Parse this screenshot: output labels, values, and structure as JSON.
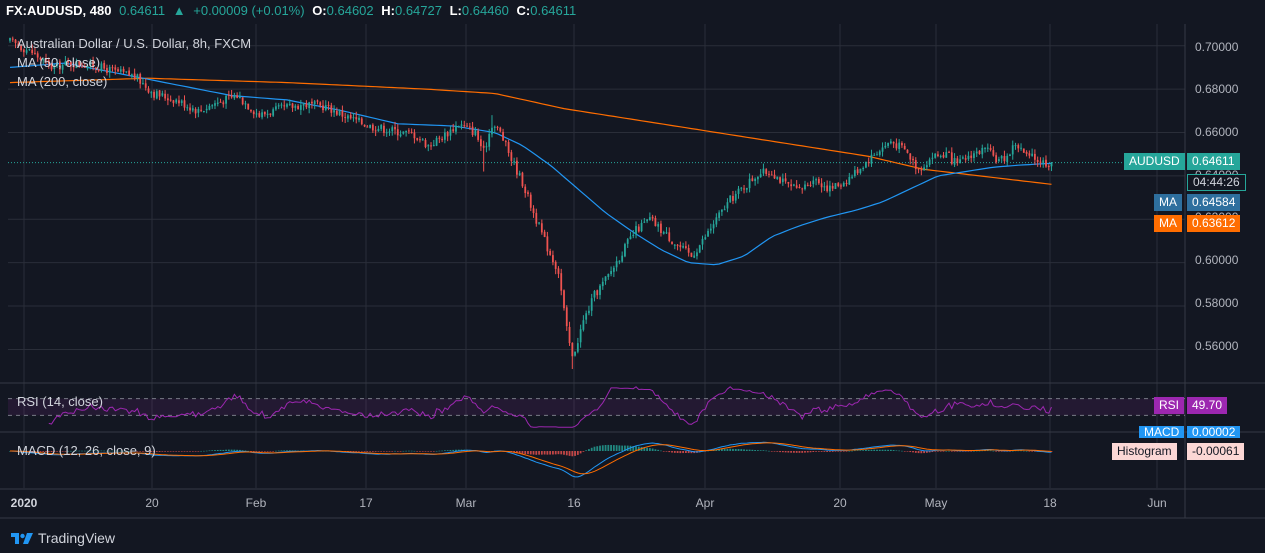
{
  "topbar": {
    "symbol": "FX:AUDUSD, 480",
    "last": "0.64611",
    "change": "+0.00009 (+0.01%)",
    "o_label": "O:",
    "o": "0.64602",
    "h_label": "H:",
    "h": "0.64727",
    "l_label": "L:",
    "l": "0.64460",
    "c_label": "C:",
    "c": "0.64611"
  },
  "legend": {
    "title": "Australian Dollar / U.S. Dollar, 8h, FXCM",
    "ma50": "MA (50, close)",
    "ma200": "MA (200, close)",
    "rsi": "RSI (14, close)",
    "macd": "MACD (12, 26, close, 9)"
  },
  "price_axis": [
    "0.70000",
    "0.68000",
    "0.66000",
    "0.64000",
    "0.62000",
    "0.60000",
    "0.58000",
    "0.56000"
  ],
  "time_axis": [
    "2020",
    "20",
    "Feb",
    "17",
    "Mar",
    "16",
    "Apr",
    "20",
    "May",
    "18",
    "Jun"
  ],
  "price_labels": {
    "symbol_tag": "AUDUSD",
    "price": "0.64611",
    "countdown": "04:44:26",
    "ma_tag": "MA",
    "ma50_value": "0.64584",
    "ma200_value": "0.63612",
    "rsi_tag": "RSI",
    "rsi_value": "49.70",
    "macd_tag": "MACD",
    "macd_value": "0.00002",
    "hist_tag": "Histogram",
    "hist_value": "-0.00061"
  },
  "colors": {
    "up": "#26a69a",
    "down": "#ef5350",
    "ma50": "#2196f3",
    "ma200": "#ff6d00",
    "rsi": "#9c27b0",
    "macd": "#2196f3",
    "signal": "#ff6d00"
  },
  "brand": "TradingView",
  "chart_data": {
    "type": "candlestick",
    "title": "Australian Dollar / U.S. Dollar, 8h, FXCM",
    "ylim": [
      0.55,
      0.705
    ],
    "last_price": 0.64611,
    "ma50_last": 0.64584,
    "ma200_last": 0.63612,
    "rsi_last": 49.7,
    "hist_last": -0.00061,
    "price_path": [
      [
        0,
        0.702
      ],
      [
        8,
        0.697
      ],
      [
        15,
        0.69
      ],
      [
        22,
        0.692
      ],
      [
        30,
        0.691
      ],
      [
        38,
        0.688
      ],
      [
        45,
        0.686
      ],
      [
        52,
        0.678
      ],
      [
        60,
        0.675
      ],
      [
        68,
        0.67
      ],
      [
        75,
        0.674
      ],
      [
        82,
        0.677
      ],
      [
        90,
        0.668
      ],
      [
        98,
        0.671
      ],
      [
        106,
        0.673
      ],
      [
        114,
        0.672
      ],
      [
        122,
        0.667
      ],
      [
        130,
        0.663
      ],
      [
        138,
        0.661
      ],
      [
        146,
        0.659
      ],
      [
        151,
        0.654
      ],
      [
        156,
        0.658
      ],
      [
        162,
        0.664
      ],
      [
        168,
        0.66
      ],
      [
        171,
        0.651
      ],
      [
        174,
        0.664
      ],
      [
        177,
        0.66
      ],
      [
        181,
        0.648
      ],
      [
        185,
        0.637
      ],
      [
        189,
        0.623
      ],
      [
        194,
        0.607
      ],
      [
        198,
        0.596
      ],
      [
        201,
        0.569
      ],
      [
        203,
        0.556
      ],
      [
        207,
        0.573
      ],
      [
        211,
        0.585
      ],
      [
        216,
        0.594
      ],
      [
        221,
        0.605
      ],
      [
        226,
        0.615
      ],
      [
        231,
        0.62
      ],
      [
        236,
        0.614
      ],
      [
        241,
        0.608
      ],
      [
        246,
        0.603
      ],
      [
        250,
        0.61
      ],
      [
        255,
        0.62
      ],
      [
        260,
        0.629
      ],
      [
        265,
        0.635
      ],
      [
        270,
        0.641
      ],
      [
        275,
        0.642
      ],
      [
        280,
        0.636
      ],
      [
        285,
        0.633
      ],
      [
        290,
        0.639
      ],
      [
        296,
        0.634
      ],
      [
        302,
        0.638
      ],
      [
        307,
        0.644
      ],
      [
        312,
        0.65
      ],
      [
        318,
        0.656
      ],
      [
        323,
        0.652
      ],
      [
        328,
        0.643
      ],
      [
        333,
        0.649
      ],
      [
        338,
        0.65
      ],
      [
        342,
        0.645
      ],
      [
        347,
        0.65
      ],
      [
        352,
        0.652
      ],
      [
        357,
        0.647
      ],
      [
        360,
        0.649
      ],
      [
        363,
        0.655
      ],
      [
        367,
        0.649
      ],
      [
        370,
        0.648
      ],
      [
        374,
        0.646
      ],
      [
        376,
        0.646
      ]
    ],
    "ma50_path": [
      [
        0,
        0.69
      ],
      [
        20,
        0.692
      ],
      [
        40,
        0.687
      ],
      [
        60,
        0.682
      ],
      [
        80,
        0.677
      ],
      [
        100,
        0.675
      ],
      [
        120,
        0.67
      ],
      [
        140,
        0.664
      ],
      [
        160,
        0.663
      ],
      [
        175,
        0.66
      ],
      [
        185,
        0.654
      ],
      [
        195,
        0.645
      ],
      [
        205,
        0.634
      ],
      [
        215,
        0.623
      ],
      [
        225,
        0.614
      ],
      [
        235,
        0.606
      ],
      [
        245,
        0.6
      ],
      [
        255,
        0.599
      ],
      [
        265,
        0.603
      ],
      [
        275,
        0.612
      ],
      [
        285,
        0.617
      ],
      [
        295,
        0.621
      ],
      [
        305,
        0.624
      ],
      [
        315,
        0.628
      ],
      [
        325,
        0.634
      ],
      [
        335,
        0.64
      ],
      [
        345,
        0.642
      ],
      [
        355,
        0.644
      ],
      [
        365,
        0.645
      ],
      [
        376,
        0.6458
      ]
    ],
    "ma200_path": [
      [
        0,
        0.683
      ],
      [
        50,
        0.685
      ],
      [
        100,
        0.683
      ],
      [
        150,
        0.68
      ],
      [
        175,
        0.678
      ],
      [
        200,
        0.671
      ],
      [
        230,
        0.665
      ],
      [
        260,
        0.659
      ],
      [
        290,
        0.653
      ],
      [
        310,
        0.649
      ],
      [
        330,
        0.643
      ],
      [
        350,
        0.64
      ],
      [
        376,
        0.6361
      ]
    ]
  }
}
